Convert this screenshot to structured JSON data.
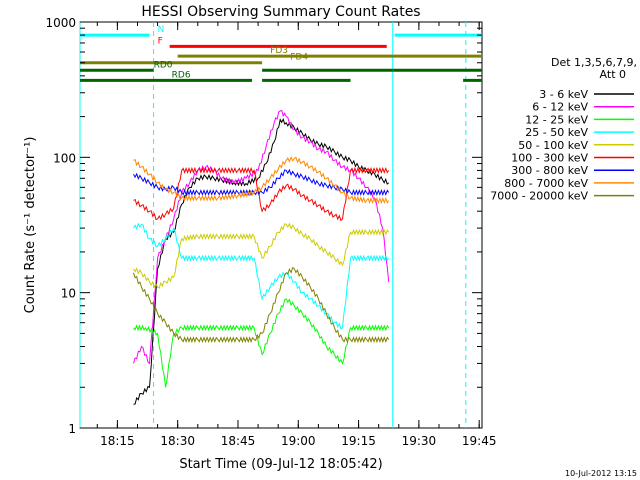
{
  "chart_data": {
    "type": "line",
    "title": "HESSI Observing Summary Count Rates",
    "xlabel": "Start Time (09-Jul-12 18:05:42)",
    "ylabel": "Count Rate (s⁻¹ detector⁻¹)",
    "yscale": "log",
    "xlim": [
      "18:05:42",
      "19:45:42"
    ],
    "ylim": [
      1,
      1000
    ],
    "x_ticks": [
      "18:15",
      "18:30",
      "18:45",
      "19:00",
      "19:15",
      "19:30",
      "19:45"
    ],
    "y_ticks": [
      "1",
      "10",
      "100",
      "1000"
    ],
    "legend_title": "Det 1,3,5,6,7,9,",
    "legend_subtitle": "Att 0",
    "legend_position": "right",
    "footer_date": "10-Jul-2012 13:15",
    "series": [
      {
        "name": "3 - 6 keV",
        "color": "#000000",
        "points": [
          [
            "18:19:00",
            1.5
          ],
          [
            "18:21:00",
            1.8
          ],
          [
            "18:23:00",
            2
          ],
          [
            "18:25:00",
            15
          ],
          [
            "18:27:00",
            25
          ],
          [
            "18:29:00",
            28
          ],
          [
            "18:31:00",
            45
          ],
          [
            "18:33:00",
            60
          ],
          [
            "18:35:00",
            70
          ],
          [
            "18:37:00",
            72
          ],
          [
            "18:39:00",
            70
          ],
          [
            "18:41:00",
            68
          ],
          [
            "18:44:00",
            65
          ],
          [
            "18:47:00",
            64
          ],
          [
            "18:50:00",
            70
          ],
          [
            "18:52:00",
            90
          ],
          [
            "18:54:00",
            130
          ],
          [
            "18:55:30",
            190
          ],
          [
            "18:57:00",
            180
          ],
          [
            "18:59:00",
            165
          ],
          [
            "19:01:00",
            150
          ],
          [
            "19:03:00",
            135
          ],
          [
            "19:05:00",
            125
          ],
          [
            "19:07:00",
            120
          ],
          [
            "19:09:00",
            110
          ],
          [
            "19:11:00",
            100
          ],
          [
            "19:13:00",
            95
          ],
          [
            "19:15:00",
            85
          ],
          [
            "19:17:00",
            80
          ],
          [
            "19:19:00",
            75
          ],
          [
            "19:21:00",
            68
          ],
          [
            "19:22:30",
            65
          ]
        ]
      },
      {
        "name": "6 - 12 keV",
        "color": "#ff00ff",
        "points": [
          [
            "18:19:00",
            3
          ],
          [
            "18:21:00",
            4
          ],
          [
            "18:23:00",
            3
          ],
          [
            "18:25:00",
            18
          ],
          [
            "18:27:00",
            25
          ],
          [
            "18:29:00",
            35
          ],
          [
            "18:31:00",
            55
          ],
          [
            "18:33:00",
            65
          ],
          [
            "18:35:00",
            80
          ],
          [
            "18:37:00",
            85
          ],
          [
            "18:39:00",
            80
          ],
          [
            "18:41:00",
            70
          ],
          [
            "18:44:00",
            65
          ],
          [
            "18:47:00",
            70
          ],
          [
            "18:50:00",
            80
          ],
          [
            "18:52:00",
            120
          ],
          [
            "18:54:00",
            180
          ],
          [
            "18:55:30",
            220
          ],
          [
            "18:57:00",
            200
          ],
          [
            "18:59:00",
            160
          ],
          [
            "19:01:00",
            140
          ],
          [
            "19:03:00",
            130
          ],
          [
            "19:05:00",
            115
          ],
          [
            "19:07:00",
            110
          ],
          [
            "19:09:00",
            95
          ],
          [
            "19:11:00",
            85
          ],
          [
            "19:13:00",
            80
          ],
          [
            "19:15:00",
            70
          ],
          [
            "19:17:00",
            60
          ],
          [
            "19:19:00",
            50
          ],
          [
            "19:21:00",
            30
          ],
          [
            "19:22:30",
            12
          ]
        ]
      },
      {
        "name": "12 - 25 keV",
        "color": "#00ff00",
        "points": [
          [
            "18:19:00",
            5.5
          ],
          [
            "18:22:00",
            5.5
          ],
          [
            "18:25:00",
            5
          ],
          [
            "18:27:00",
            2
          ],
          [
            "18:29:00",
            5
          ],
          [
            "18:31:00",
            5.5
          ],
          [
            "18:35:00",
            5.5
          ],
          [
            "18:40:00",
            5.5
          ],
          [
            "18:45:00",
            5.5
          ],
          [
            "18:49:00",
            5.5
          ],
          [
            "18:51:00",
            3.5
          ],
          [
            "18:53:00",
            5
          ],
          [
            "18:55:00",
            7
          ],
          [
            "18:57:00",
            9
          ],
          [
            "18:59:00",
            8
          ],
          [
            "19:01:00",
            7
          ],
          [
            "19:03:00",
            6
          ],
          [
            "19:05:00",
            5
          ],
          [
            "19:07:00",
            4
          ],
          [
            "19:09:00",
            3.5
          ],
          [
            "19:11:00",
            3
          ],
          [
            "19:13:00",
            5.5
          ],
          [
            "19:17:00",
            5.5
          ],
          [
            "19:22:30",
            5.5
          ]
        ]
      },
      {
        "name": "25 - 50 keV",
        "color": "#00ffff",
        "points": [
          [
            "18:19:00",
            30
          ],
          [
            "18:21:00",
            32
          ],
          [
            "18:23:00",
            25
          ],
          [
            "18:25:00",
            22
          ],
          [
            "18:27:00",
            25
          ],
          [
            "18:29:00",
            30
          ],
          [
            "18:31:00",
            18
          ],
          [
            "18:35:00",
            18
          ],
          [
            "18:40:00",
            18
          ],
          [
            "18:45:00",
            18
          ],
          [
            "18:49:00",
            18
          ],
          [
            "18:51:00",
            9
          ],
          [
            "18:53:00",
            11
          ],
          [
            "18:55:00",
            13
          ],
          [
            "18:57:00",
            14
          ],
          [
            "18:59:00",
            12
          ],
          [
            "19:01:00",
            10
          ],
          [
            "19:03:00",
            9
          ],
          [
            "19:05:00",
            8
          ],
          [
            "19:07:00",
            7
          ],
          [
            "19:09:00",
            6
          ],
          [
            "19:11:00",
            5.5
          ],
          [
            "19:13:00",
            18
          ],
          [
            "19:17:00",
            18
          ],
          [
            "19:22:30",
            18
          ]
        ]
      },
      {
        "name": "50 - 100 keV",
        "color": "#cccc00",
        "points": [
          [
            "18:19:00",
            15
          ],
          [
            "18:21:00",
            14
          ],
          [
            "18:23:00",
            12
          ],
          [
            "18:25:00",
            11
          ],
          [
            "18:27:00",
            12
          ],
          [
            "18:29:00",
            13
          ],
          [
            "18:31:00",
            25
          ],
          [
            "18:35:00",
            26
          ],
          [
            "18:40:00",
            26
          ],
          [
            "18:45:00",
            26
          ],
          [
            "18:49:00",
            26
          ],
          [
            "18:51:00",
            18
          ],
          [
            "18:53:00",
            22
          ],
          [
            "18:55:00",
            28
          ],
          [
            "18:57:00",
            32
          ],
          [
            "18:59:00",
            30
          ],
          [
            "19:01:00",
            27
          ],
          [
            "19:03:00",
            25
          ],
          [
            "19:05:00",
            22
          ],
          [
            "19:07:00",
            20
          ],
          [
            "19:09:00",
            18
          ],
          [
            "19:11:00",
            16
          ],
          [
            "19:13:00",
            28
          ],
          [
            "19:17:00",
            28
          ],
          [
            "19:22:30",
            28
          ]
        ]
      },
      {
        "name": "100 - 300 keV",
        "color": "#ff0000",
        "points": [
          [
            "18:19:00",
            48
          ],
          [
            "18:21:00",
            44
          ],
          [
            "18:23:00",
            40
          ],
          [
            "18:25:00",
            35
          ],
          [
            "18:27:00",
            38
          ],
          [
            "18:29:00",
            42
          ],
          [
            "18:31:00",
            80
          ],
          [
            "18:35:00",
            80
          ],
          [
            "18:40:00",
            80
          ],
          [
            "18:45:00",
            80
          ],
          [
            "18:49:00",
            80
          ],
          [
            "18:51:00",
            40
          ],
          [
            "18:53:00",
            45
          ],
          [
            "18:55:00",
            55
          ],
          [
            "18:57:00",
            62
          ],
          [
            "18:59:00",
            58
          ],
          [
            "19:01:00",
            52
          ],
          [
            "19:03:00",
            48
          ],
          [
            "19:05:00",
            44
          ],
          [
            "19:07:00",
            40
          ],
          [
            "19:09:00",
            37
          ],
          [
            "19:11:00",
            35
          ],
          [
            "19:13:00",
            80
          ],
          [
            "19:17:00",
            80
          ],
          [
            "19:22:30",
            80
          ]
        ]
      },
      {
        "name": "300 - 800 keV",
        "color": "#0000ff",
        "points": [
          [
            "18:19:00",
            75
          ],
          [
            "18:21:00",
            70
          ],
          [
            "18:23:00",
            65
          ],
          [
            "18:25:00",
            60
          ],
          [
            "18:27:00",
            58
          ],
          [
            "18:29:00",
            60
          ],
          [
            "18:31:00",
            55
          ],
          [
            "18:35:00",
            55
          ],
          [
            "18:40:00",
            55
          ],
          [
            "18:45:00",
            55
          ],
          [
            "18:49:00",
            55
          ],
          [
            "18:51:00",
            55
          ],
          [
            "18:53:00",
            60
          ],
          [
            "18:55:00",
            70
          ],
          [
            "18:57:00",
            80
          ],
          [
            "18:59:00",
            75
          ],
          [
            "19:01:00",
            72
          ],
          [
            "19:03:00",
            68
          ],
          [
            "19:05:00",
            64
          ],
          [
            "19:07:00",
            62
          ],
          [
            "19:09:00",
            60
          ],
          [
            "19:11:00",
            58
          ],
          [
            "19:13:00",
            55
          ],
          [
            "19:17:00",
            55
          ],
          [
            "19:22:30",
            55
          ]
        ]
      },
      {
        "name": "800 - 7000 keV",
        "color": "#ff8800",
        "points": [
          [
            "18:19:00",
            95
          ],
          [
            "18:21:00",
            85
          ],
          [
            "18:23:00",
            75
          ],
          [
            "18:25:00",
            65
          ],
          [
            "18:27:00",
            58
          ],
          [
            "18:29:00",
            55
          ],
          [
            "18:31:00",
            50
          ],
          [
            "18:35:00",
            50
          ],
          [
            "18:40:00",
            50
          ],
          [
            "18:45:00",
            52
          ],
          [
            "18:49:00",
            55
          ],
          [
            "18:51:00",
            60
          ],
          [
            "18:53:00",
            70
          ],
          [
            "18:55:00",
            82
          ],
          [
            "18:57:00",
            95
          ],
          [
            "18:59:00",
            98
          ],
          [
            "19:01:00",
            92
          ],
          [
            "19:03:00",
            85
          ],
          [
            "19:05:00",
            78
          ],
          [
            "19:07:00",
            70
          ],
          [
            "19:09:00",
            62
          ],
          [
            "19:11:00",
            55
          ],
          [
            "19:13:00",
            50
          ],
          [
            "19:17:00",
            48
          ],
          [
            "19:22:30",
            48
          ]
        ]
      },
      {
        "name": "7000 - 20000 keV",
        "color": "#808000",
        "points": [
          [
            "18:19:00",
            14
          ],
          [
            "18:21:00",
            11
          ],
          [
            "18:23:00",
            9
          ],
          [
            "18:25:00",
            7
          ],
          [
            "18:27:00",
            6
          ],
          [
            "18:29:00",
            5
          ],
          [
            "18:31:00",
            4.5
          ],
          [
            "18:35:00",
            4.5
          ],
          [
            "18:40:00",
            4.5
          ],
          [
            "18:45:00",
            4.5
          ],
          [
            "18:49:00",
            4.5
          ],
          [
            "18:51:00",
            5
          ],
          [
            "18:53:00",
            7
          ],
          [
            "18:55:00",
            10
          ],
          [
            "18:57:00",
            14
          ],
          [
            "18:59:00",
            15
          ],
          [
            "19:01:00",
            13
          ],
          [
            "19:03:00",
            11
          ],
          [
            "19:05:00",
            9
          ],
          [
            "19:07:00",
            7
          ],
          [
            "19:09:00",
            5.5
          ],
          [
            "19:11:00",
            4.5
          ],
          [
            "19:13:00",
            4.5
          ],
          [
            "19:17:00",
            4.5
          ],
          [
            "19:22:30",
            4.5
          ]
        ]
      }
    ],
    "vertical_markers": [
      {
        "time": "18:05:42",
        "color": "#00ffff",
        "style": "solid"
      },
      {
        "time": "18:24:00",
        "color": "#00ffff",
        "style": "dashed"
      },
      {
        "time": "19:23:30",
        "color": "#00ffff",
        "style": "solid"
      },
      {
        "time": "19:41:40",
        "color": "#00ffff",
        "style": "dashed"
      }
    ],
    "flag_bars": [
      {
        "label": "N",
        "color": "#00ffff",
        "value": 800,
        "segments": [
          [
            "18:05:42",
            "18:23:00"
          ],
          [
            "19:24:00",
            "19:45:42"
          ]
        ],
        "label_time": "18:25:00"
      },
      {
        "label": "F",
        "color": "#ff0000",
        "value": 660,
        "segments": [
          [
            "18:28:00",
            "19:22:00"
          ]
        ],
        "label_time": "18:25:00"
      },
      {
        "label": "FD3",
        "color": "#808000",
        "value": 560,
        "segments": [
          [
            "18:30:00",
            "19:45:42"
          ]
        ],
        "label_time": "18:53:00"
      },
      {
        "label": "FD4",
        "color": "#808000",
        "value": 500,
        "segments": [
          [
            "18:05:42",
            "18:51:00"
          ]
        ],
        "label_time": "18:58:00"
      },
      {
        "label": "RD0",
        "color": "#006400",
        "value": 440,
        "segments": [
          [
            "18:05:42",
            "18:24:00"
          ],
          [
            "18:51:00",
            "19:45:42"
          ]
        ],
        "label_time": "18:24:00"
      },
      {
        "label": "RD6",
        "color": "#006400",
        "value": 370,
        "segments": [
          [
            "18:05:42",
            "18:48:30"
          ],
          [
            "18:51:00",
            "19:13:00"
          ],
          [
            "19:41:00",
            "19:45:42"
          ]
        ],
        "label_time": "18:28:30"
      }
    ]
  }
}
